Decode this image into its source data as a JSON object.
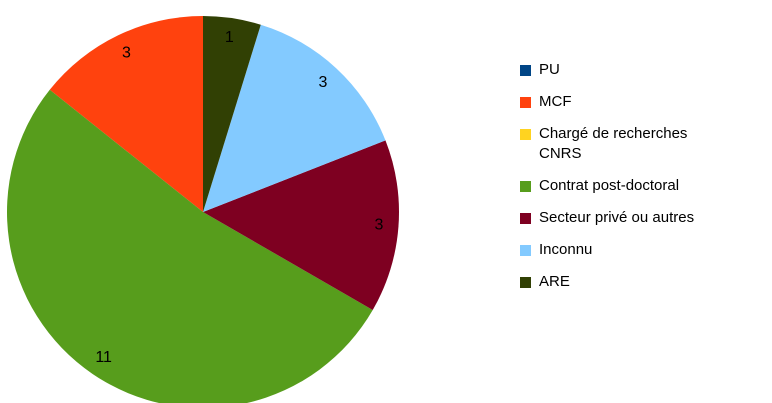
{
  "chart_data": {
    "type": "pie",
    "categories": [
      "PU",
      "MCF",
      "Chargé de recherches CNRS",
      "Contrat post-doctoral",
      "Secteur privé ou autres",
      "Inconnu",
      "ARE"
    ],
    "values": [
      0,
      3,
      0,
      11,
      3,
      3,
      1
    ],
    "colors": [
      "#004586",
      "#ff420e",
      "#ffd320",
      "#579d1c",
      "#7e0021",
      "#83caff",
      "#314004"
    ],
    "legend": "right"
  }
}
